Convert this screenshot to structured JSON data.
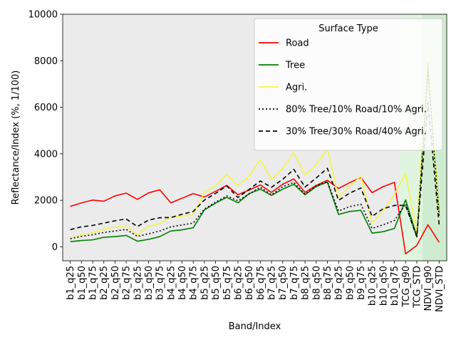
{
  "chart_data": {
    "type": "line",
    "xlabel": "Band/Index",
    "ylabel": "Reflectance/Index (%, 1/100)",
    "ylim": [
      -600,
      10000
    ],
    "yticks": [
      0,
      2000,
      4000,
      6000,
      8000,
      10000
    ],
    "grid": false,
    "legend": {
      "title": "Surface Type",
      "placement": "top-right"
    },
    "shaded_regions": [
      {
        "from": "TCG_q90",
        "to": "NDVI_q90",
        "color": "#e0f5df"
      },
      {
        "from": "NDVI_q90",
        "to": "NDVI_STD",
        "color": "#cfecd0"
      }
    ],
    "categories": [
      "b1_q25",
      "b1_q50",
      "b1_q75",
      "b2_q25",
      "b2_q50",
      "b2_q75",
      "b3_q25",
      "b3_q50",
      "b3_q75",
      "b4_q25",
      "b4_q50",
      "b4_q75",
      "b5_q25",
      "b5_q50",
      "b5_q75",
      "b6_q25",
      "b6_q50",
      "b6_q75",
      "b7_q25",
      "b7_q50",
      "b7_q75",
      "b8_q25",
      "b8_q50",
      "b8_q75",
      "b9_q25",
      "b9_q50",
      "b9_q75",
      "b10_q25",
      "b10_q50",
      "b10_q75",
      "TCG_q90",
      "TCG_STD",
      "NDVI_q90",
      "NDVI_STD"
    ],
    "series": [
      {
        "name": "Road",
        "color": "#ff0000",
        "dash": "solid",
        "values": [
          1740,
          1890,
          2010,
          1960,
          2190,
          2310,
          2040,
          2320,
          2450,
          1890,
          2090,
          2290,
          2140,
          2390,
          2640,
          2240,
          2440,
          2660,
          2340,
          2690,
          2920,
          2340,
          2640,
          2860,
          2510,
          2760,
          2980,
          2330,
          2590,
          2770,
          -300,
          60,
          950,
          190
        ]
      },
      {
        "name": "Tree",
        "color": "#008000",
        "dash": "solid",
        "values": [
          220,
          270,
          300,
          410,
          440,
          490,
          240,
          320,
          440,
          680,
          730,
          820,
          1590,
          1880,
          2130,
          1890,
          2290,
          2480,
          2210,
          2480,
          2690,
          2240,
          2590,
          2790,
          1390,
          1520,
          1570,
          590,
          650,
          790,
          2020,
          450,
          7900,
          1400
        ]
      },
      {
        "name": "Agri.",
        "color": "#f4f44a",
        "dash": "solid",
        "values": [
          370,
          530,
          600,
          760,
          840,
          920,
          510,
          880,
          1010,
          1270,
          1320,
          1390,
          2340,
          2630,
          3110,
          2630,
          3040,
          3750,
          2900,
          3360,
          4050,
          3080,
          3540,
          4210,
          2120,
          2610,
          3040,
          1030,
          1560,
          2250,
          3160,
          620,
          8520,
          1200
        ]
      },
      {
        "name": "80% Tree/10% Road/10% Agri.",
        "color": "#000000",
        "dash": "2,3",
        "values": [
          350,
          450,
          520,
          620,
          680,
          750,
          450,
          560,
          680,
          860,
          940,
          1020,
          1630,
          1920,
          2190,
          1980,
          2270,
          2560,
          2240,
          2580,
          2770,
          2260,
          2620,
          2800,
          1540,
          1730,
          1830,
          790,
          950,
          1130,
          1850,
          420,
          7500,
          1300
        ]
      },
      {
        "name": "30% Tree/30% Road/40% Agri.",
        "color": "#000000",
        "dash": "6,4",
        "values": [
          740,
          860,
          920,
          1020,
          1120,
          1200,
          870,
          1150,
          1250,
          1260,
          1400,
          1520,
          2010,
          2300,
          2620,
          2120,
          2470,
          2830,
          2560,
          2900,
          3330,
          2570,
          2960,
          3380,
          2000,
          2310,
          2530,
          1310,
          1640,
          1780,
          1780,
          430,
          6200,
          950
        ]
      }
    ]
  }
}
